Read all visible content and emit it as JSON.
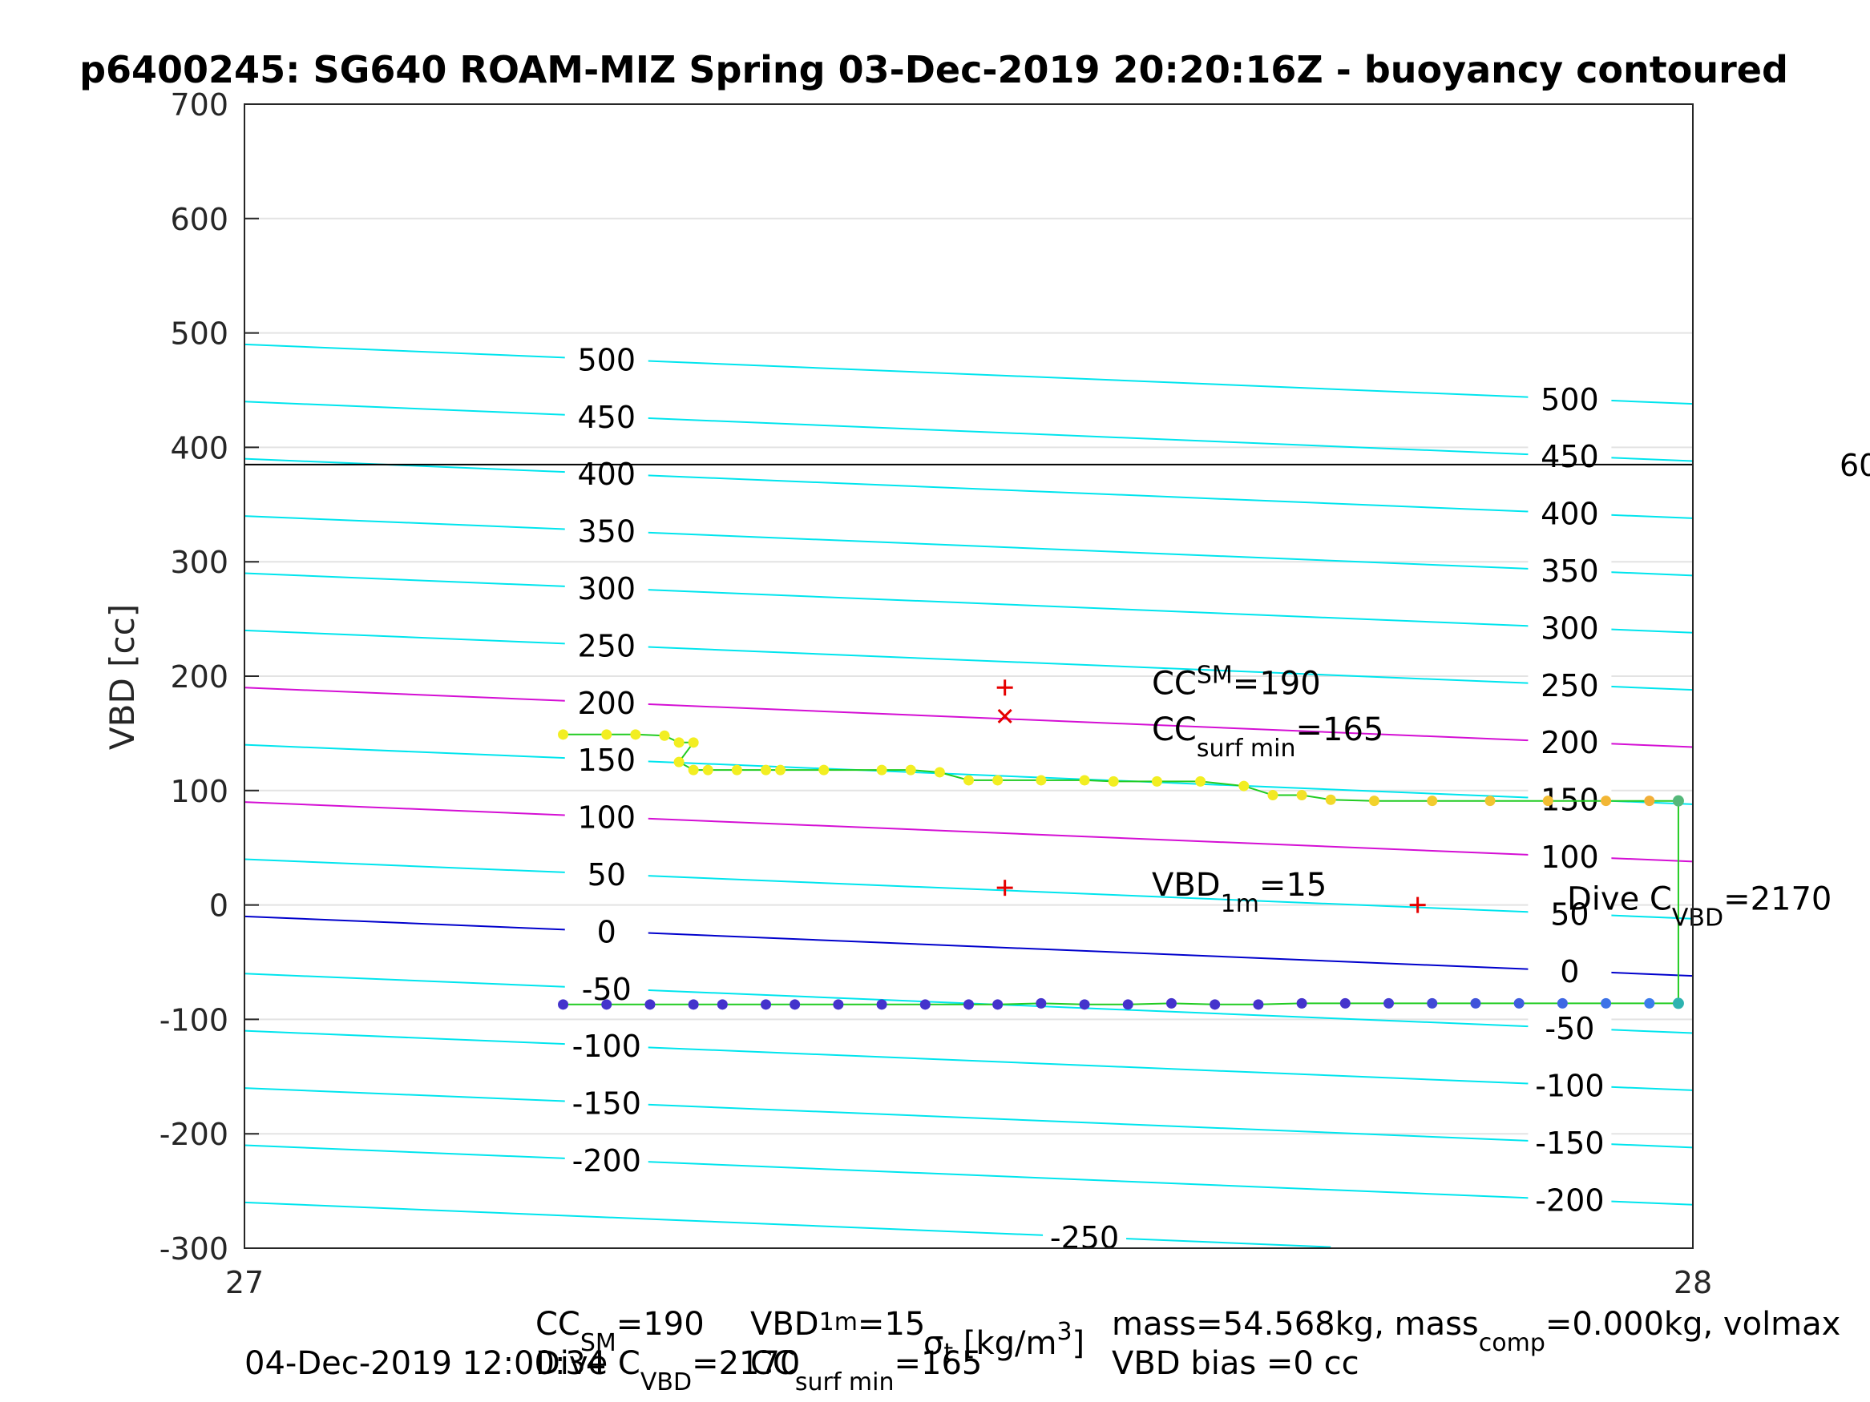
{
  "chart_data": {
    "type": "scatter",
    "title": "p6400245: SG640 ROAM-MIZ Spring 03-Dec-2019 20:20:16Z - buoyancy contoured",
    "xlabel": "σt [kg/m3]",
    "ylabel": "VBD [cc]",
    "xlim": [
      27,
      28
    ],
    "ylim": [
      -300,
      700
    ],
    "x_ticks": [
      "27",
      "28"
    ],
    "y_ticks": [
      "700",
      "600",
      "500",
      "400",
      "300",
      "200",
      "100",
      "0",
      "-100",
      "-200",
      "-300"
    ],
    "grid": true,
    "legend": "none",
    "colors": {
      "contour": "#00e5ee",
      "contour_highlight": "#d40fd4",
      "zero_line": "#0000cc",
      "track": "#22cc22",
      "hline": "#000000",
      "marker": "#e60000",
      "dive_high": "#f2ee22",
      "dive_low": "#4433cc"
    },
    "hline": {
      "y": 385,
      "label": "60"
    },
    "contours": [
      {
        "value": 500,
        "left_label": "500",
        "right_label": "500"
      },
      {
        "value": 450,
        "left_label": "450",
        "right_label": "450"
      },
      {
        "value": 400,
        "left_label": "400",
        "right_label": "400"
      },
      {
        "value": 350,
        "left_label": "350",
        "right_label": "350"
      },
      {
        "value": 300,
        "left_label": "300",
        "right_label": "300"
      },
      {
        "value": 250,
        "left_label": "250",
        "right_label": "250"
      },
      {
        "value": 200,
        "left_label": "200",
        "right_label": "200"
      },
      {
        "value": 150,
        "left_label": "150",
        "right_label": "150"
      },
      {
        "value": 100,
        "left_label": "100",
        "right_label": "100"
      },
      {
        "value": 50,
        "left_label": "50",
        "right_label": "50"
      },
      {
        "value": 0,
        "left_label": "0",
        "right_label": "0"
      },
      {
        "value": -50,
        "left_label": "-50",
        "right_label": "-50"
      },
      {
        "value": -100,
        "left_label": "-100",
        "right_label": "-100"
      },
      {
        "value": -150,
        "left_label": "-150",
        "right_label": "-150"
      },
      {
        "value": -200,
        "left_label": "-200",
        "right_label": "-200"
      },
      {
        "value": -250,
        "left_label": "-250",
        "right_label": ""
      }
    ],
    "upper_series": [
      [
        27.22,
        149
      ],
      [
        27.25,
        149
      ],
      [
        27.27,
        149
      ],
      [
        27.29,
        148
      ],
      [
        27.3,
        142
      ],
      [
        27.31,
        142
      ],
      [
        27.3,
        125
      ],
      [
        27.31,
        118
      ],
      [
        27.32,
        118
      ],
      [
        27.34,
        118
      ],
      [
        27.36,
        118
      ],
      [
        27.37,
        118
      ],
      [
        27.4,
        118
      ],
      [
        27.44,
        118
      ],
      [
        27.46,
        118
      ],
      [
        27.48,
        116
      ],
      [
        27.5,
        109
      ],
      [
        27.52,
        109
      ],
      [
        27.55,
        109
      ],
      [
        27.58,
        109
      ],
      [
        27.6,
        108
      ],
      [
        27.63,
        108
      ],
      [
        27.66,
        108
      ],
      [
        27.69,
        104
      ],
      [
        27.71,
        96
      ],
      [
        27.73,
        96
      ],
      [
        27.75,
        92
      ],
      [
        27.78,
        91
      ],
      [
        27.82,
        91
      ],
      [
        27.86,
        91
      ],
      [
        27.9,
        91
      ],
      [
        27.94,
        91
      ],
      [
        27.97,
        91
      ],
      [
        27.99,
        91
      ]
    ],
    "lower_series": [
      [
        27.22,
        -87
      ],
      [
        27.25,
        -87
      ],
      [
        27.28,
        -87
      ],
      [
        27.31,
        -87
      ],
      [
        27.33,
        -87
      ],
      [
        27.36,
        -87
      ],
      [
        27.38,
        -87
      ],
      [
        27.41,
        -87
      ],
      [
        27.44,
        -87
      ],
      [
        27.47,
        -87
      ],
      [
        27.5,
        -87
      ],
      [
        27.52,
        -87
      ],
      [
        27.55,
        -86
      ],
      [
        27.58,
        -87
      ],
      [
        27.61,
        -87
      ],
      [
        27.64,
        -86
      ],
      [
        27.67,
        -87
      ],
      [
        27.7,
        -87
      ],
      [
        27.73,
        -86
      ],
      [
        27.76,
        -86
      ],
      [
        27.79,
        -86
      ],
      [
        27.82,
        -86
      ],
      [
        27.85,
        -86
      ],
      [
        27.88,
        -86
      ],
      [
        27.91,
        -86
      ],
      [
        27.94,
        -86
      ],
      [
        27.97,
        -86
      ],
      [
        27.99,
        -86
      ]
    ],
    "markers": [
      {
        "x": 27.525,
        "y": 190,
        "symbol": "+",
        "label_main": "CC",
        "label_sub": "SM",
        "label_val": "=190"
      },
      {
        "x": 27.525,
        "y": 165,
        "symbol": "x",
        "label_main": "CC",
        "label_sub": "surf min",
        "label_val": "=165"
      },
      {
        "x": 27.525,
        "y": 15,
        "symbol": "+",
        "label_main": "VBD",
        "label_sub": "1m",
        "label_val": "=15"
      },
      {
        "x": 27.81,
        "y": 0,
        "symbol": "+",
        "label_main": "Dive C",
        "label_sub": "VBD",
        "label_val": "=2170"
      }
    ],
    "footer": {
      "date": "04-Dec-2019 12:00:34",
      "cc_sm": "=190",
      "vbd_1m": "=15",
      "dive_c": "=2170",
      "cc_surf_min": "=165",
      "mass": "mass=54.568kg, mass",
      "mass_comp": "=0.000kg, volmax",
      "vbd_bias": "VBD bias =0 cc"
    }
  }
}
